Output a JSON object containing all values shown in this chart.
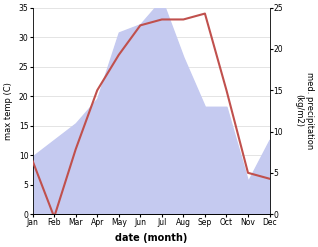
{
  "months": [
    "Jan",
    "Feb",
    "Mar",
    "Apr",
    "May",
    "Jun",
    "Jul",
    "Aug",
    "Sep",
    "Oct",
    "Nov",
    "Dec"
  ],
  "temperature": [
    9,
    -0.5,
    11,
    21,
    27,
    32,
    33,
    33,
    34,
    21,
    7,
    6
  ],
  "precipitation": [
    7,
    9,
    11,
    14,
    22,
    23,
    26,
    19,
    13,
    13,
    4,
    9
  ],
  "temp_color": "#c0504d",
  "precip_fill_color": "#c5caf0",
  "left_ylim": [
    0,
    35
  ],
  "right_ylim": [
    0,
    25
  ],
  "left_yticks": [
    0,
    5,
    10,
    15,
    20,
    25,
    30,
    35
  ],
  "right_yticks": [
    0,
    5,
    10,
    15,
    20,
    25
  ],
  "ylabel_left": "max temp (C)",
  "ylabel_right": "med. precipitation\n(kg/m2)",
  "xlabel": "date (month)",
  "bg_color": "#ffffff",
  "label_fontsize": 6,
  "tick_fontsize": 5.5,
  "xlabel_fontsize": 7,
  "line_width": 1.5
}
